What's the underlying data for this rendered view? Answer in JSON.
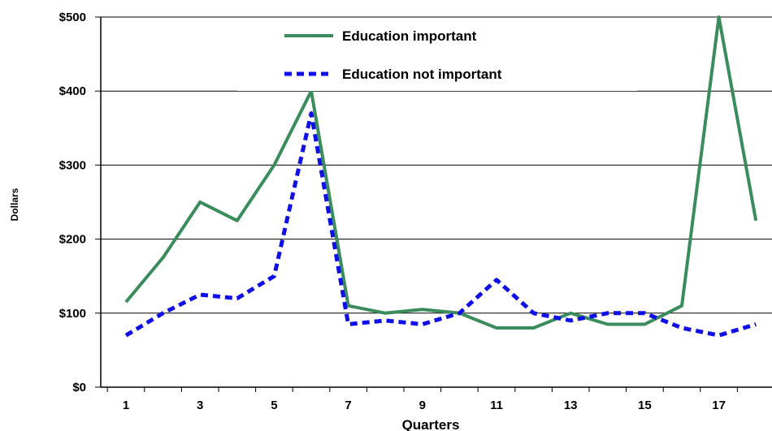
{
  "chart_data": {
    "type": "line",
    "xlabel": "Quarters",
    "ylabel": "Dollars",
    "x": [
      1,
      2,
      3,
      4,
      5,
      6,
      7,
      8,
      9,
      10,
      11,
      12,
      13,
      14,
      15,
      16,
      17,
      18
    ],
    "x_tick_labels": [
      "1",
      "3",
      "5",
      "7",
      "9",
      "11",
      "13",
      "15",
      "17"
    ],
    "y_tick_labels": [
      "$0",
      "$100",
      "$200",
      "$300",
      "$400",
      "$500"
    ],
    "ylim": [
      0,
      500
    ],
    "grid": "horizontal",
    "legend_position": "top-center",
    "series": [
      {
        "name": "Education important",
        "color": "#3a8c5c",
        "style": "solid",
        "values": [
          115,
          175,
          250,
          225,
          300,
          400,
          110,
          100,
          105,
          100,
          80,
          80,
          100,
          85,
          85,
          110,
          500,
          225
        ]
      },
      {
        "name": "Education not important",
        "color": "#1010e6",
        "style": "dashed",
        "values": [
          70,
          100,
          125,
          120,
          150,
          370,
          85,
          90,
          85,
          100,
          145,
          100,
          90,
          100,
          100,
          80,
          70,
          85
        ]
      }
    ]
  }
}
